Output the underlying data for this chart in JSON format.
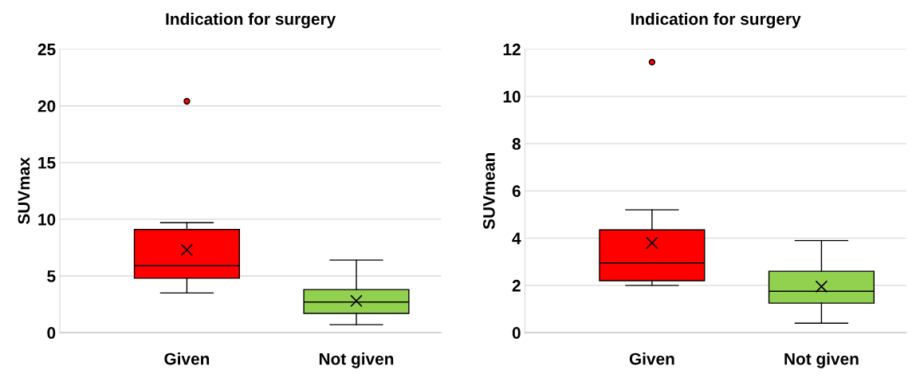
{
  "chart_data": [
    {
      "type": "box",
      "title": "Indication for surgery",
      "ylabel": "SUVmax",
      "categories": [
        "Given",
        "Not given"
      ],
      "colors": [
        "#ff0000",
        "#92d050"
      ],
      "ylim": [
        0,
        25
      ],
      "yticks": [
        0,
        5,
        10,
        15,
        20,
        25
      ],
      "grid": "y",
      "boxes": [
        {
          "low": 3.5,
          "q1": 4.8,
          "median": 5.9,
          "q3": 9.1,
          "high": 9.7,
          "mean": 7.3,
          "outliers": [
            20.4
          ]
        },
        {
          "low": 0.7,
          "q1": 1.7,
          "median": 2.7,
          "q3": 3.8,
          "high": 6.4,
          "mean": 2.8
        }
      ]
    },
    {
      "type": "box",
      "title": "Indication for surgery",
      "ylabel": "SUVmean",
      "categories": [
        "Given",
        "Not given"
      ],
      "colors": [
        "#ff0000",
        "#92d050"
      ],
      "ylim": [
        0,
        12
      ],
      "yticks": [
        0,
        2,
        4,
        6,
        8,
        10,
        12
      ],
      "grid": "y",
      "boxes": [
        {
          "low": 2.0,
          "q1": 2.2,
          "median": 2.95,
          "q3": 4.35,
          "high": 5.2,
          "mean": 3.8,
          "outliers": [
            11.45
          ]
        },
        {
          "low": 0.4,
          "q1": 1.25,
          "median": 1.75,
          "q3": 2.6,
          "high": 3.9,
          "mean": 1.95
        }
      ]
    }
  ]
}
